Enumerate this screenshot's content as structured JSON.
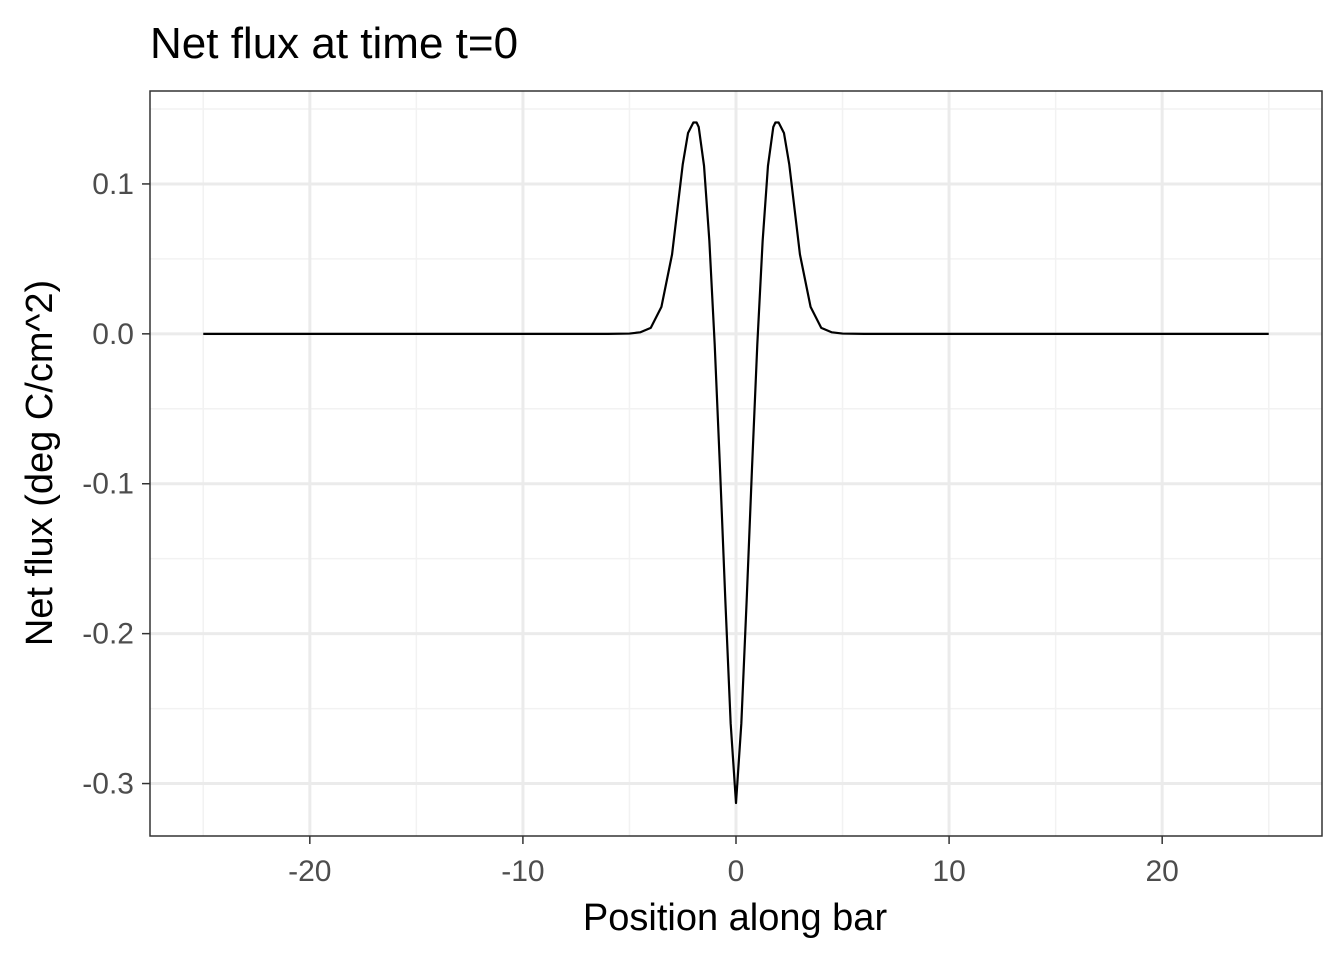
{
  "chart_data": {
    "type": "line",
    "title": "Net flux at time t=0",
    "xlabel": "Position along bar",
    "ylabel": "Net flux (deg C/cm^2)",
    "xlim": [
      -27.5,
      27.5
    ],
    "ylim": [
      -0.335,
      0.162
    ],
    "x_ticks": [
      -20,
      -10,
      0,
      10,
      20
    ],
    "x_tick_labels": [
      "-20",
      "-10",
      "0",
      "10",
      "20"
    ],
    "y_ticks": [
      -0.3,
      -0.2,
      -0.1,
      0.0,
      0.1
    ],
    "y_tick_labels": [
      "-0.3",
      "-0.2",
      "-0.1",
      "0.0",
      "0.1"
    ],
    "x_minor_ticks": [
      -25,
      -15,
      -5,
      5,
      15,
      25
    ],
    "y_minor_ticks": [
      -0.25,
      -0.15,
      -0.05,
      0.05,
      0.15
    ],
    "grid": true,
    "theme": "bw",
    "colors": {
      "line": "#000000",
      "grid_major": "#ebebeb",
      "grid_minor": "#f2f2f2",
      "panel_border": "#333333"
    },
    "series": [
      {
        "x": [
          -25,
          -20,
          -15,
          -10,
          -6,
          -5,
          -4.5,
          -4,
          -3.5,
          -3,
          -2.75,
          -2.5,
          -2.25,
          -2,
          -1.85,
          -1.75,
          -1.5,
          -1.25,
          -1,
          -0.75,
          -0.5,
          -0.25,
          0,
          0.25,
          0.5,
          0.75,
          1,
          1.25,
          1.5,
          1.75,
          1.85,
          2,
          2.25,
          2.5,
          2.75,
          3,
          3.5,
          4,
          4.5,
          5,
          6,
          10,
          15,
          20,
          25
        ],
        "y": [
          0,
          0,
          0,
          0,
          0,
          0.0002,
          0.001,
          0.004,
          0.018,
          0.053,
          0.083,
          0.113,
          0.134,
          0.141,
          0.141,
          0.138,
          0.112,
          0.062,
          -0.007,
          -0.09,
          -0.178,
          -0.26,
          -0.313,
          -0.26,
          -0.178,
          -0.09,
          -0.007,
          0.062,
          0.112,
          0.138,
          0.141,
          0.141,
          0.134,
          0.113,
          0.083,
          0.053,
          0.018,
          0.004,
          0.001,
          0.0002,
          0,
          0,
          0,
          0,
          0
        ]
      }
    ]
  }
}
